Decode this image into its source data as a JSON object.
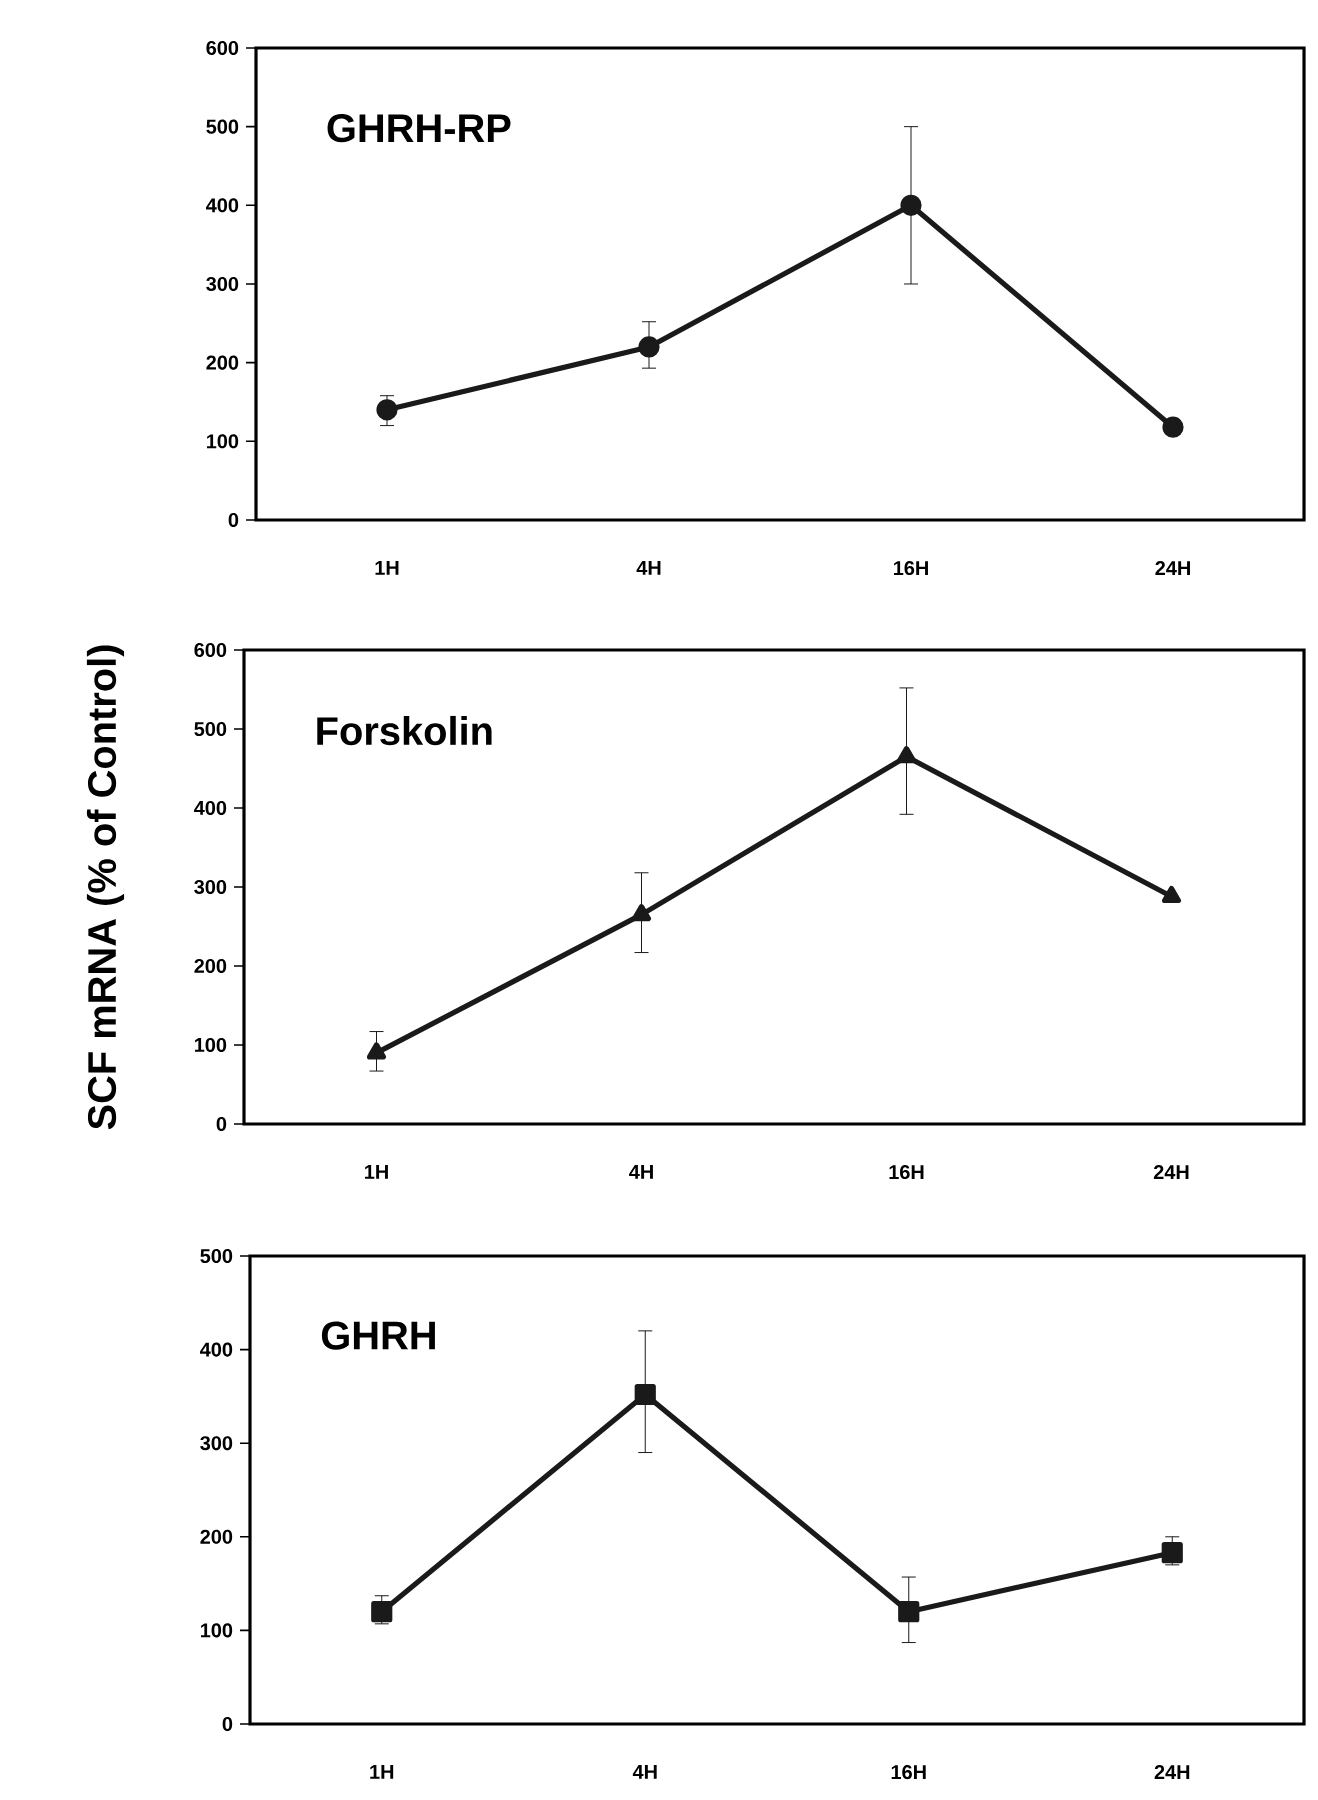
{
  "chart_data": [
    {
      "type": "line",
      "title": "GHRH-RP",
      "categories": [
        "1H",
        "4H",
        "16H",
        "24H"
      ],
      "values": [
        140,
        220,
        400,
        118
      ],
      "errors": [
        [
          120,
          158
        ],
        [
          193,
          252
        ],
        [
          300,
          500
        ],
        null
      ],
      "color": "#1a1a1a",
      "marker": "circle",
      "ylim": [
        0,
        600
      ],
      "yticks": [
        0,
        100,
        200,
        300,
        400,
        500,
        600
      ]
    },
    {
      "type": "line",
      "title": "Forskolin",
      "ylabel": "SCF mRNA (% of Control)",
      "categories": [
        "1H",
        "4H",
        "16H",
        "24H"
      ],
      "values": [
        90,
        265,
        465,
        288
      ],
      "errors": [
        [
          67,
          117
        ],
        [
          217,
          318
        ],
        [
          392,
          552
        ],
        null
      ],
      "color": "#1a1a1a",
      "marker": "triangle",
      "ylim": [
        0,
        600
      ],
      "yticks": [
        0,
        100,
        200,
        300,
        400,
        500,
        600
      ]
    },
    {
      "type": "line",
      "title": "GHRH",
      "categories": [
        "1H",
        "4H",
        "16H",
        "24H"
      ],
      "values": [
        120,
        352,
        120,
        183
      ],
      "errors": [
        [
          107,
          137
        ],
        [
          290,
          420
        ],
        [
          87,
          157
        ],
        [
          170,
          200
        ]
      ],
      "color": "#1a1a1a",
      "marker": "square",
      "ylim": [
        0,
        500
      ],
      "yticks": [
        0,
        100,
        200,
        300,
        400,
        500
      ]
    }
  ]
}
